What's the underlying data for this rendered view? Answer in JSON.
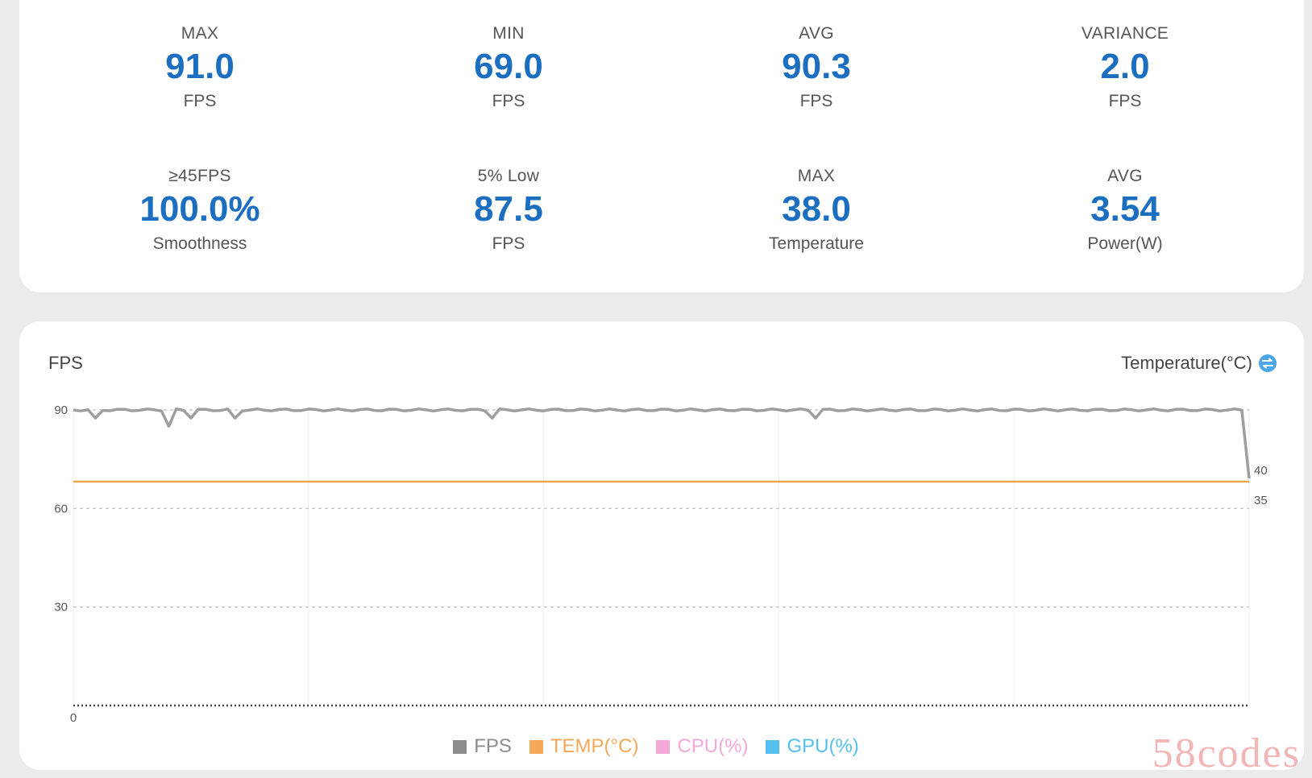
{
  "stats_row1": [
    {
      "label": "MAX",
      "value": "91.0",
      "unit": "FPS"
    },
    {
      "label": "MIN",
      "value": "69.0",
      "unit": "FPS"
    },
    {
      "label": "AVG",
      "value": "90.3",
      "unit": "FPS"
    },
    {
      "label": "VARIANCE",
      "value": "2.0",
      "unit": "FPS"
    }
  ],
  "stats_row2": [
    {
      "label": "≥45FPS",
      "value": "100.0%",
      "unit": "Smoothness"
    },
    {
      "label": "5% Low",
      "value": "87.5",
      "unit": "FPS"
    },
    {
      "label": "MAX",
      "value": "38.0",
      "unit": "Temperature"
    },
    {
      "label": "AVG",
      "value": "3.54",
      "unit": "Power(W)"
    }
  ],
  "chart": {
    "left_axis_title": "FPS",
    "right_axis_title": "Temperature(°C)",
    "swap_icon": "swap-vertical-icon"
  },
  "chart_data": {
    "type": "line",
    "ylabel": "FPS",
    "ylabel_right": "Temperature(°C)",
    "ylim": [
      0,
      90
    ],
    "y_ticks": [
      "0",
      "30",
      "60",
      "90"
    ],
    "y_ticks_right": [
      "40",
      "35"
    ],
    "grid": true,
    "series": [
      {
        "name": "FPS",
        "color": "#9e9e9e",
        "values": [
          90,
          90,
          90,
          89,
          90,
          90,
          90,
          90,
          90,
          90,
          90,
          90,
          90,
          88,
          90,
          90,
          89,
          90,
          90,
          90,
          90,
          90,
          89,
          90,
          90,
          90,
          90,
          90,
          90,
          90,
          90,
          90,
          90,
          90,
          90,
          90,
          90,
          90,
          90,
          90,
          90,
          90,
          90,
          90,
          90,
          90,
          90,
          90,
          90,
          90,
          90,
          90,
          90,
          90,
          90,
          90,
          90,
          89,
          90,
          90,
          90,
          90,
          90,
          90,
          90,
          90,
          90,
          90,
          90,
          90,
          90,
          90,
          90,
          90,
          90,
          90,
          90,
          90,
          90,
          90,
          90,
          90,
          90,
          90,
          90,
          90,
          90,
          90,
          90,
          90,
          90,
          90,
          90,
          90,
          90,
          90,
          90,
          90,
          90,
          90,
          90,
          89,
          90,
          90,
          90,
          90,
          90,
          90,
          90,
          90,
          90,
          90,
          90,
          90,
          90,
          90,
          90,
          90,
          90,
          90,
          90,
          90,
          90,
          90,
          90,
          90,
          90,
          90,
          90,
          90,
          90,
          90,
          90,
          90,
          90,
          90,
          90,
          90,
          90,
          90,
          90,
          90,
          90,
          90,
          90,
          90,
          90,
          90,
          90,
          90,
          90,
          90,
          90,
          90,
          90,
          90,
          90,
          90,
          90,
          90,
          69
        ]
      },
      {
        "name": "TEMP(°C)",
        "color": "#f0a64a",
        "values": [
          38,
          38,
          38,
          38,
          38,
          38,
          38,
          38,
          38,
          38,
          38
        ]
      }
    ],
    "legend": [
      {
        "label": "FPS",
        "color": "#8c8c8c"
      },
      {
        "label": "TEMP(°C)",
        "color": "#f5a85a"
      },
      {
        "label": "CPU(%)",
        "color": "#f5a7d7"
      },
      {
        "label": "GPU(%)",
        "color": "#55bff0"
      }
    ]
  },
  "watermark": "58codes"
}
